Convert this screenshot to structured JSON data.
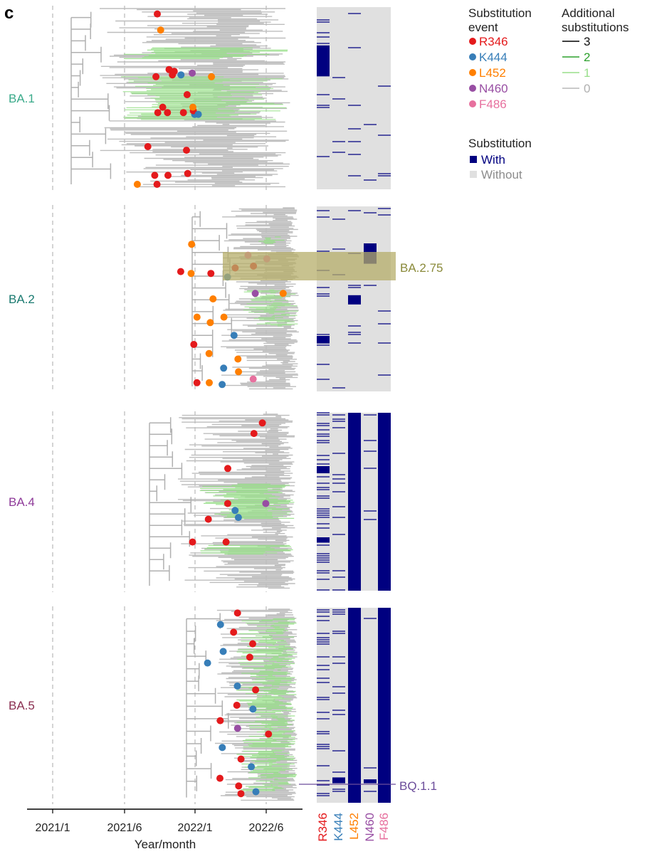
{
  "panel_label": "c",
  "x_axis": {
    "label": "Year/month",
    "ticks": [
      "2021/1",
      "2021/6",
      "2022/1",
      "2022/6"
    ]
  },
  "legend": {
    "event_title": [
      "Substitution",
      "event"
    ],
    "events": [
      {
        "name": "R346",
        "color": "#e41a1c"
      },
      {
        "name": "K444",
        "color": "#377eb8"
      },
      {
        "name": "L452",
        "color": "#ff7f00"
      },
      {
        "name": "N460",
        "color": "#984ea3"
      },
      {
        "name": "F486",
        "color": "#e7709e"
      }
    ],
    "additional_title": [
      "Additional",
      "substitutions"
    ],
    "additional": [
      {
        "name": "3",
        "color": "#000000"
      },
      {
        "name": "2",
        "color": "#2ca02c"
      },
      {
        "name": "1",
        "color": "#98df8a"
      },
      {
        "name": "0",
        "color": "#b8b8b8"
      }
    ],
    "status_title": "Substitution",
    "status": [
      {
        "name": "With",
        "color": "#000080"
      },
      {
        "name": "Without",
        "color": "#e0e0e0"
      }
    ]
  },
  "heatmap_columns": [
    {
      "name": "R346",
      "color": "#e41a1c"
    },
    {
      "name": "K444",
      "color": "#377eb8"
    },
    {
      "name": "L452",
      "color": "#ff7f00"
    },
    {
      "name": "N460",
      "color": "#984ea3"
    },
    {
      "name": "F486",
      "color": "#e7709e"
    }
  ],
  "annotations": [
    {
      "label": "BA.2.75",
      "color": "#8a8a3a"
    },
    {
      "label": "BQ.1.1",
      "color": "#6b4c9a"
    }
  ],
  "chart_data": [
    {
      "type": "scatter",
      "name": "BA.1",
      "label_color": "#3aaa8a",
      "x_range": [
        "2021/1",
        "2022/6"
      ],
      "with_blocks": [
        {
          "col": "R346",
          "from": 0.62,
          "to": 0.79
        }
      ],
      "events": [
        {
          "x": "2021/9",
          "y": 0.97,
          "e": "R346"
        },
        {
          "x": "2021/10",
          "y": 0.88,
          "e": "L452"
        },
        {
          "x": "2021/10",
          "y": 0.66,
          "e": "R346"
        },
        {
          "x": "2021/11",
          "y": 0.63,
          "e": "R346"
        },
        {
          "x": "2021/9",
          "y": 0.62,
          "e": "R346"
        },
        {
          "x": "2021/11",
          "y": 0.65,
          "e": "R346"
        },
        {
          "x": "2021/12",
          "y": 0.63,
          "e": "K444"
        },
        {
          "x": "2022/1",
          "y": 0.64,
          "e": "N460"
        },
        {
          "x": "2022/2",
          "y": 0.62,
          "e": "L452"
        },
        {
          "x": "2021/12",
          "y": 0.52,
          "e": "R346"
        },
        {
          "x": "2021/10",
          "y": 0.45,
          "e": "R346"
        },
        {
          "x": "2021/9",
          "y": 0.42,
          "e": "R346"
        },
        {
          "x": "2021/10",
          "y": 0.42,
          "e": "R346"
        },
        {
          "x": "2021/12",
          "y": 0.42,
          "e": "R346"
        },
        {
          "x": "2022/1",
          "y": 0.41,
          "e": "K444"
        },
        {
          "x": "2022/1",
          "y": 0.43,
          "e": "R346"
        },
        {
          "x": "2022/1",
          "y": 0.45,
          "e": "L452"
        },
        {
          "x": "2022/1",
          "y": 0.41,
          "e": "K444"
        },
        {
          "x": "2021/8",
          "y": 0.23,
          "e": "R346"
        },
        {
          "x": "2021/12",
          "y": 0.21,
          "e": "R346"
        },
        {
          "x": "2021/9",
          "y": 0.07,
          "e": "R346"
        },
        {
          "x": "2021/10",
          "y": 0.07,
          "e": "R346"
        },
        {
          "x": "2021/12",
          "y": 0.08,
          "e": "R346"
        },
        {
          "x": "2021/7",
          "y": 0.02,
          "e": "L452"
        },
        {
          "x": "2021/9",
          "y": 0.02,
          "e": "R346"
        }
      ]
    },
    {
      "type": "scatter",
      "name": "BA.2",
      "label_color": "#1a7a70",
      "x_range": [
        "2021/1",
        "2022/6"
      ],
      "with_blocks": [
        {
          "col": "L452",
          "from": 0.47,
          "to": 0.52
        },
        {
          "col": "R346",
          "from": 0.26,
          "to": 0.3
        },
        {
          "col": "N460",
          "from": 0.69,
          "to": 0.8
        }
      ],
      "events": [
        {
          "x": "2022/1",
          "y": 0.8,
          "e": "L452"
        },
        {
          "x": "2022/5",
          "y": 0.74,
          "e": "F486"
        },
        {
          "x": "2022/6",
          "y": 0.72,
          "e": "F486"
        },
        {
          "x": "2022/5",
          "y": 0.68,
          "e": "R346"
        },
        {
          "x": "2022/4",
          "y": 0.67,
          "e": "R346"
        },
        {
          "x": "2021/12",
          "y": 0.65,
          "e": "R346"
        },
        {
          "x": "2022/1",
          "y": 0.64,
          "e": "L452"
        },
        {
          "x": "2022/2",
          "y": 0.64,
          "e": "R346"
        },
        {
          "x": "2022/3",
          "y": 0.62,
          "e": "K444"
        },
        {
          "x": "2022/5",
          "y": 0.53,
          "e": "N460"
        },
        {
          "x": "2022/7",
          "y": 0.53,
          "e": "L452"
        },
        {
          "x": "2022/2",
          "y": 0.5,
          "e": "L452"
        },
        {
          "x": "2022/1",
          "y": 0.4,
          "e": "L452"
        },
        {
          "x": "2022/3",
          "y": 0.4,
          "e": "L452"
        },
        {
          "x": "2022/2",
          "y": 0.37,
          "e": "L452"
        },
        {
          "x": "2022/4",
          "y": 0.3,
          "e": "K444"
        },
        {
          "x": "2022/1",
          "y": 0.25,
          "e": "R346"
        },
        {
          "x": "2022/2",
          "y": 0.2,
          "e": "L452"
        },
        {
          "x": "2022/4",
          "y": 0.17,
          "e": "L452"
        },
        {
          "x": "2022/3",
          "y": 0.12,
          "e": "K444"
        },
        {
          "x": "2022/4",
          "y": 0.1,
          "e": "L452"
        },
        {
          "x": "2022/5",
          "y": 0.06,
          "e": "F486"
        },
        {
          "x": "2022/2",
          "y": 0.04,
          "e": "L452"
        },
        {
          "x": "2022/1",
          "y": 0.04,
          "e": "R346"
        },
        {
          "x": "2022/3",
          "y": 0.03,
          "e": "K444"
        }
      ]
    },
    {
      "type": "scatter",
      "name": "BA.4",
      "label_color": "#8e3a99",
      "x_range": [
        "2021/1",
        "2022/6"
      ],
      "with_blocks": [
        {
          "col": "R346",
          "from": 0.66,
          "to": 0.7
        },
        {
          "col": "R346",
          "from": 0.27,
          "to": 0.3
        },
        {
          "col": "L452",
          "from": 0.0,
          "to": 1.0
        },
        {
          "col": "F486",
          "from": 0.0,
          "to": 1.0
        }
      ],
      "events": [
        {
          "x": "2022/6",
          "y": 0.95,
          "e": "R346"
        },
        {
          "x": "2022/5",
          "y": 0.89,
          "e": "R346"
        },
        {
          "x": "2022/3",
          "y": 0.69,
          "e": "R346"
        },
        {
          "x": "2022/3",
          "y": 0.49,
          "e": "R346"
        },
        {
          "x": "2022/4",
          "y": 0.45,
          "e": "K444"
        },
        {
          "x": "2022/6",
          "y": 0.49,
          "e": "N460"
        },
        {
          "x": "2022/4",
          "y": 0.41,
          "e": "K444"
        },
        {
          "x": "2022/2",
          "y": 0.4,
          "e": "R346"
        },
        {
          "x": "2022/1",
          "y": 0.27,
          "e": "R346"
        },
        {
          "x": "2022/3",
          "y": 0.27,
          "e": "R346"
        }
      ]
    },
    {
      "type": "scatter",
      "name": "BA.5",
      "label_color": "#8a2e50",
      "x_range": [
        "2021/1",
        "2022/6"
      ],
      "with_blocks": [
        {
          "col": "L452",
          "from": 0.0,
          "to": 1.0
        },
        {
          "col": "F486",
          "from": 0.0,
          "to": 1.0
        },
        {
          "col": "K444",
          "from": 0.1,
          "to": 0.13
        },
        {
          "col": "N460",
          "from": 0.1,
          "to": 0.12
        }
      ],
      "events": [
        {
          "x": "2022/4",
          "y": 0.98,
          "e": "R346"
        },
        {
          "x": "2022/3",
          "y": 0.92,
          "e": "K444"
        },
        {
          "x": "2022/4",
          "y": 0.88,
          "e": "R346"
        },
        {
          "x": "2022/5",
          "y": 0.82,
          "e": "R346"
        },
        {
          "x": "2022/3",
          "y": 0.78,
          "e": "K444"
        },
        {
          "x": "2022/5",
          "y": 0.75,
          "e": "R346"
        },
        {
          "x": "2022/2",
          "y": 0.72,
          "e": "K444"
        },
        {
          "x": "2022/4",
          "y": 0.6,
          "e": "K444"
        },
        {
          "x": "2022/5",
          "y": 0.58,
          "e": "R346"
        },
        {
          "x": "2022/4",
          "y": 0.5,
          "e": "R346"
        },
        {
          "x": "2022/5",
          "y": 0.48,
          "e": "K444"
        },
        {
          "x": "2022/3",
          "y": 0.42,
          "e": "R346"
        },
        {
          "x": "2022/4",
          "y": 0.38,
          "e": "N460"
        },
        {
          "x": "2022/6",
          "y": 0.35,
          "e": "R346"
        },
        {
          "x": "2022/3",
          "y": 0.28,
          "e": "K444"
        },
        {
          "x": "2022/4",
          "y": 0.22,
          "e": "R346"
        },
        {
          "x": "2022/5",
          "y": 0.18,
          "e": "K444"
        },
        {
          "x": "2022/3",
          "y": 0.12,
          "e": "R346"
        },
        {
          "x": "2022/4",
          "y": 0.08,
          "e": "R346"
        },
        {
          "x": "2022/5",
          "y": 0.05,
          "e": "K444"
        },
        {
          "x": "2022/4",
          "y": 0.04,
          "e": "R346"
        }
      ]
    }
  ]
}
